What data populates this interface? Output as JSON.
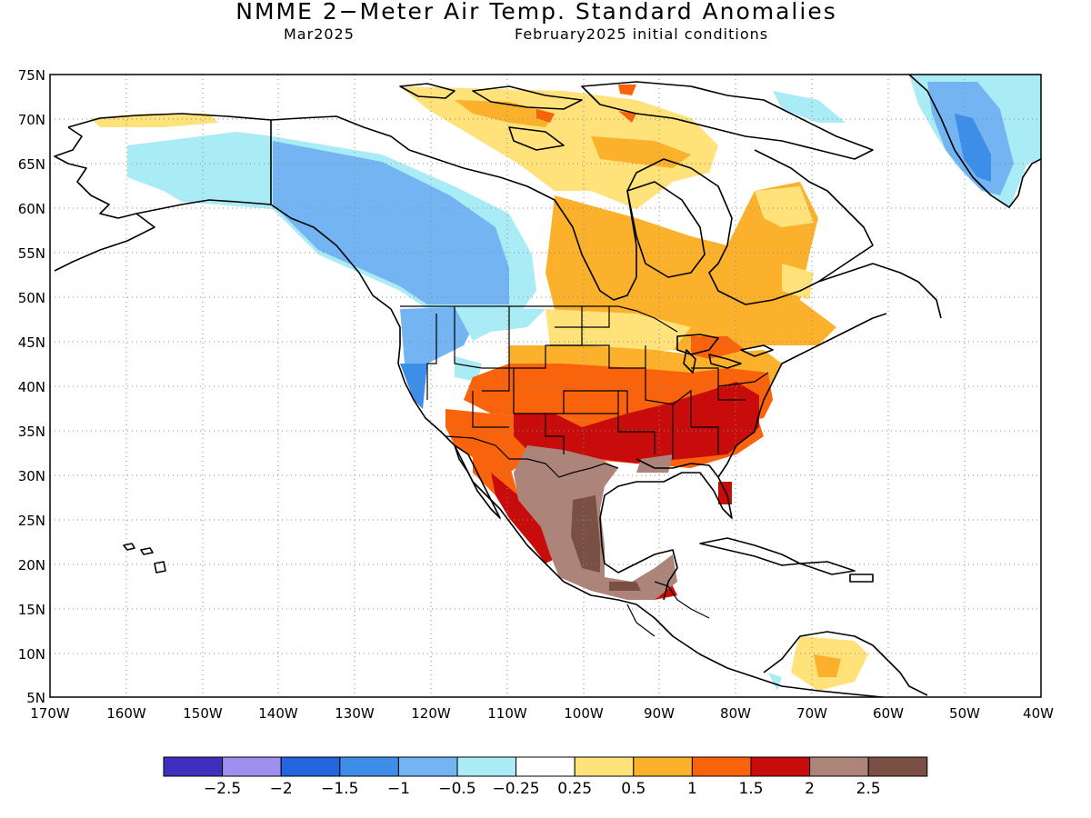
{
  "title": "NMME 2−Meter Air Temp. Standard Anomalies",
  "valid_month": "Mar2025",
  "initial_conditions": "February2025 initial conditions",
  "lat_ticks": [
    "75N",
    "70N",
    "65N",
    "60N",
    "55N",
    "50N",
    "45N",
    "40N",
    "35N",
    "30N",
    "25N",
    "20N",
    "15N",
    "10N",
    "5N"
  ],
  "lon_ticks": [
    "170W",
    "160W",
    "150W",
    "140W",
    "130W",
    "120W",
    "110W",
    "100W",
    "90W",
    "80W",
    "70W",
    "60W",
    "50W",
    "40W"
  ],
  "colorbar": {
    "colors": [
      "#3f2fbf",
      "#9f8fef",
      "#2364e0",
      "#3d8ee8",
      "#74b4f2",
      "#aaecf6",
      "#ffffff",
      "#ffe27a",
      "#fbb12c",
      "#f8630c",
      "#c80c0c",
      "#ad8479",
      "#7a5045"
    ],
    "labels": [
      "−2.5",
      "−2",
      "−1.5",
      "−1",
      "−0.5",
      "−0.25",
      "0.25",
      "0.5",
      "1",
      "1.5",
      "2",
      "2.5"
    ]
  },
  "colors": {
    "land_outline": "#000000",
    "grid": "#8a8a8a",
    "frame": "#000000"
  }
}
